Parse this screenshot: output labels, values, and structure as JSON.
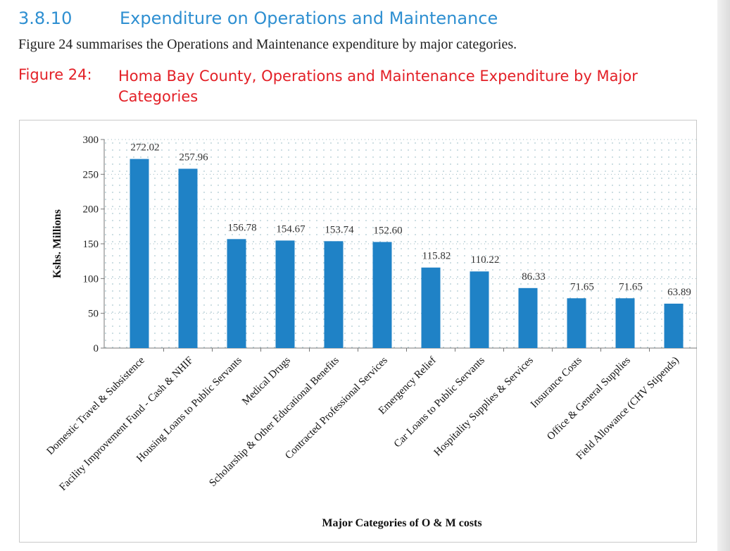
{
  "section": {
    "number": "3.8.10",
    "title": "Expenditure on Operations and Maintenance"
  },
  "intro_text": "Figure 24 summarises the Operations and Maintenance expenditure by major categories.",
  "figure": {
    "label": "Figure 24:",
    "title": "Homa Bay County, Operations and Maintenance  Expenditure by Major Categories"
  },
  "colors": {
    "bar": "#1f82c6",
    "caption": "#e32027",
    "heading": "#2e8fd1"
  },
  "chart_data": {
    "type": "bar",
    "title": "Homa Bay County, Operations and Maintenance  Expenditure by Major Categories",
    "xlabel": "Major Categories of O & M costs",
    "ylabel": "Kshs. Millions",
    "ylim": [
      0,
      300
    ],
    "yticks": [
      0,
      50,
      100,
      150,
      200,
      250,
      300
    ],
    "grid": "dotted",
    "categories": [
      "Domestic Travel & Subsistence",
      "Facility Improvement Fund - Cash & NHIF",
      "Housing Loans to Public Servants",
      "Medical Drugs",
      "Scholarship & Other Educational Benefits",
      "Contracted Professional Services",
      "Emergency Relief",
      "Car Loans to Public Servants",
      "Hospitality Supplies & Services",
      "Insurance Costs",
      "Office & General Supplies",
      "Field Allowance (CHV Stipends)"
    ],
    "values": [
      272.02,
      257.96,
      156.78,
      154.67,
      153.74,
      152.6,
      115.82,
      110.22,
      86.33,
      71.65,
      71.65,
      63.89
    ],
    "value_labels": [
      "272.02",
      "257.96",
      "156.78",
      "154.67",
      "153.74",
      "152.60",
      "115.82",
      "110.22",
      "86.33",
      "71.65",
      "71.65",
      "63.89"
    ]
  }
}
